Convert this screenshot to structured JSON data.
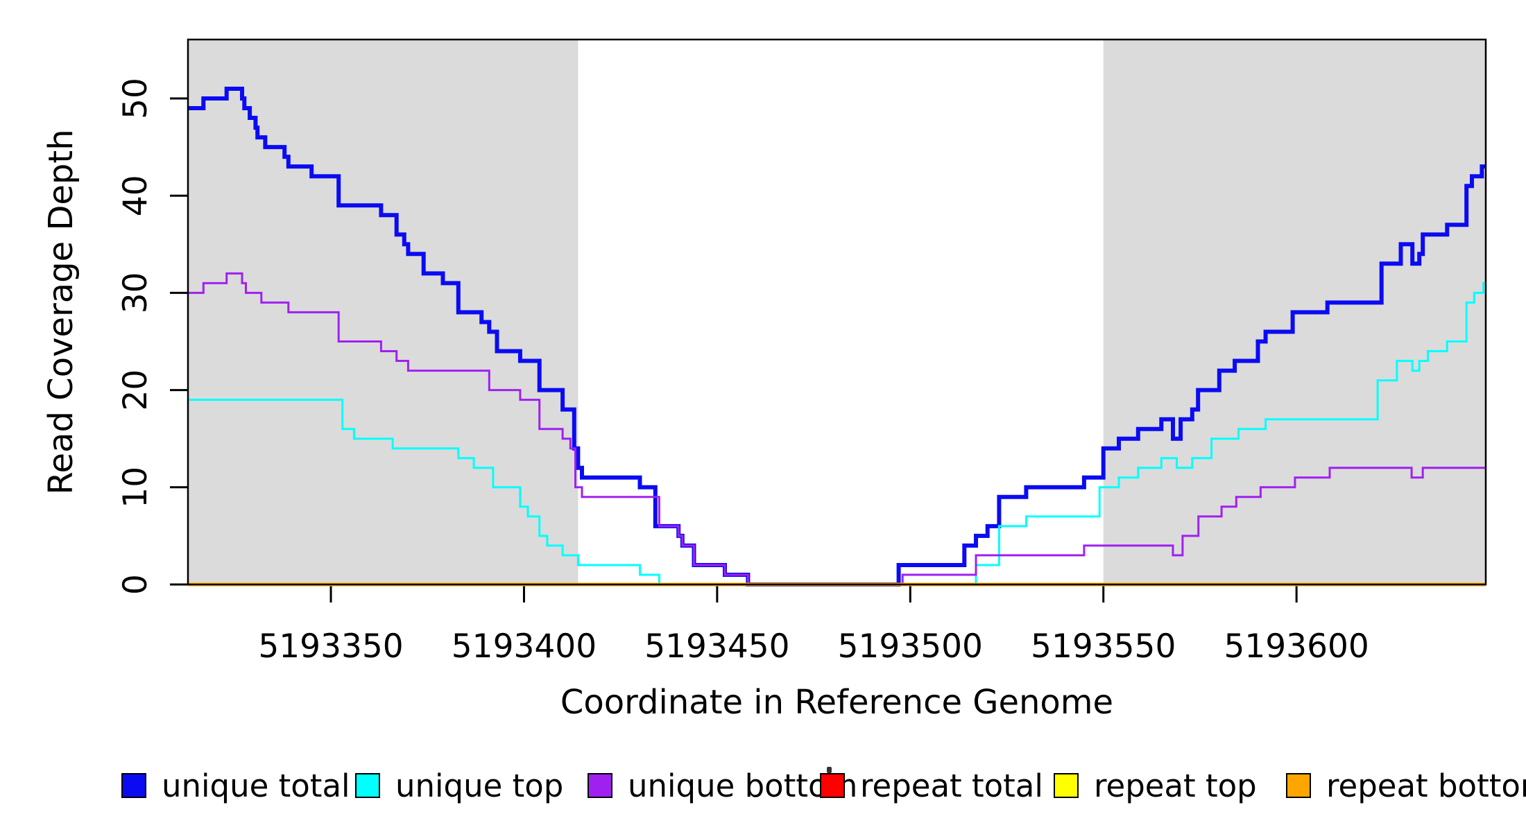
{
  "figure": {
    "background": "#ffffff",
    "axis_color": "#000000"
  },
  "chart_data": {
    "type": "line",
    "subtype": "step",
    "title": "",
    "xlabel": "Coordinate in Reference Genome",
    "ylabel": "Read Coverage Depth",
    "xlim": [
      5193313,
      5193649
    ],
    "ylim": [
      0,
      56
    ],
    "x_ticks": [
      5193350,
      5193400,
      5193450,
      5193500,
      5193550,
      5193600
    ],
    "y_ticks": [
      0,
      10,
      20,
      30,
      40,
      50
    ],
    "grid": false,
    "legend_position": "bottom",
    "shaded_regions": [
      {
        "name": "left-gray-band",
        "from": 5193313,
        "to": 5193414,
        "color": "#DBDBDB"
      },
      {
        "name": "right-gray-band",
        "from": 5193550,
        "to": 5193649,
        "color": "#DBDBDB"
      }
    ],
    "series": [
      {
        "name": "unique total",
        "color": "#0B0BF2",
        "width": 6,
        "points": [
          [
            5193314,
            49
          ],
          [
            5193317,
            50
          ],
          [
            5193323,
            51
          ],
          [
            5193327,
            50
          ],
          [
            5193327.6,
            49
          ],
          [
            5193329,
            48
          ],
          [
            5193330.5,
            47
          ],
          [
            5193331,
            46
          ],
          [
            5193333,
            45
          ],
          [
            5193338,
            44
          ],
          [
            5193339,
            43
          ],
          [
            5193345,
            42
          ],
          [
            5193352,
            39
          ],
          [
            5193363,
            38
          ],
          [
            5193367,
            36
          ],
          [
            5193369,
            35
          ],
          [
            5193370,
            34
          ],
          [
            5193374,
            32
          ],
          [
            5193379,
            31
          ],
          [
            5193383,
            28
          ],
          [
            5193389,
            27
          ],
          [
            5193391,
            26
          ],
          [
            5193393,
            24
          ],
          [
            5193399,
            23
          ],
          [
            5193404,
            20
          ],
          [
            5193410,
            18
          ],
          [
            5193413,
            14
          ],
          [
            5193414,
            12
          ],
          [
            5193415,
            11
          ],
          [
            5193430,
            10
          ],
          [
            5193434,
            6
          ],
          [
            5193440,
            5
          ],
          [
            5193441,
            4
          ],
          [
            5193444,
            2
          ],
          [
            5193452,
            1
          ],
          [
            5193458,
            0
          ],
          [
            5193497,
            2
          ],
          [
            5193514,
            4
          ],
          [
            5193517,
            5
          ],
          [
            5193520,
            6
          ],
          [
            5193523,
            9
          ],
          [
            5193530,
            10
          ],
          [
            5193545,
            11
          ],
          [
            5193550,
            14
          ],
          [
            5193554,
            15
          ],
          [
            5193559,
            16
          ],
          [
            5193565,
            17
          ],
          [
            5193568,
            15
          ],
          [
            5193570,
            17
          ],
          [
            5193573,
            18
          ],
          [
            5193574.5,
            20
          ],
          [
            5193580,
            22
          ],
          [
            5193584,
            23
          ],
          [
            5193590,
            25
          ],
          [
            5193592,
            26
          ],
          [
            5193599,
            28
          ],
          [
            5193608,
            29
          ],
          [
            5193622,
            33
          ],
          [
            5193627,
            35
          ],
          [
            5193630,
            33
          ],
          [
            5193631.8,
            34
          ],
          [
            5193632.7,
            36
          ],
          [
            5193639,
            37
          ],
          [
            5193644,
            41
          ],
          [
            5193645.4,
            42
          ],
          [
            5193648,
            43
          ]
        ]
      },
      {
        "name": "unique top",
        "color": "#00FFFF",
        "width": 3,
        "points": [
          [
            5193314,
            19
          ],
          [
            5193353,
            16
          ],
          [
            5193356,
            15
          ],
          [
            5193366,
            14
          ],
          [
            5193383,
            13
          ],
          [
            5193387,
            12
          ],
          [
            5193392,
            10
          ],
          [
            5193399,
            8
          ],
          [
            5193401,
            7
          ],
          [
            5193404,
            5
          ],
          [
            5193406,
            4
          ],
          [
            5193410,
            3
          ],
          [
            5193414,
            2
          ],
          [
            5193430,
            1
          ],
          [
            5193435,
            0
          ],
          [
            5193517,
            2
          ],
          [
            5193523,
            6
          ],
          [
            5193530,
            7
          ],
          [
            5193549,
            10
          ],
          [
            5193554,
            11
          ],
          [
            5193559,
            12
          ],
          [
            5193565,
            13
          ],
          [
            5193569,
            12
          ],
          [
            5193573,
            13
          ],
          [
            5193578,
            15
          ],
          [
            5193585,
            16
          ],
          [
            5193592,
            17
          ],
          [
            5193621,
            21
          ],
          [
            5193626,
            23
          ],
          [
            5193630,
            22
          ],
          [
            5193631.8,
            23
          ],
          [
            5193634,
            24
          ],
          [
            5193639,
            25
          ],
          [
            5193644,
            29
          ],
          [
            5193646,
            30
          ],
          [
            5193648.4,
            31
          ]
        ]
      },
      {
        "name": "unique bottom",
        "color": "#A020F0",
        "width": 3,
        "points": [
          [
            5193314,
            30
          ],
          [
            5193317,
            31
          ],
          [
            5193323,
            32
          ],
          [
            5193327,
            31
          ],
          [
            5193328,
            30
          ],
          [
            5193332,
            29
          ],
          [
            5193339,
            28
          ],
          [
            5193352,
            25
          ],
          [
            5193363,
            24
          ],
          [
            5193367,
            23
          ],
          [
            5193370,
            22
          ],
          [
            5193391,
            20
          ],
          [
            5193399,
            19
          ],
          [
            5193404,
            16
          ],
          [
            5193410,
            15
          ],
          [
            5193412,
            14
          ],
          [
            5193413.3,
            10
          ],
          [
            5193415,
            9
          ],
          [
            5193435,
            6
          ],
          [
            5193440,
            5
          ],
          [
            5193441,
            4
          ],
          [
            5193444,
            2
          ],
          [
            5193452,
            1
          ],
          [
            5193458,
            0
          ],
          [
            5193498,
            1
          ],
          [
            5193517,
            3
          ],
          [
            5193545,
            4
          ],
          [
            5193568,
            3
          ],
          [
            5193570.5,
            5
          ],
          [
            5193574.6,
            7
          ],
          [
            5193580.6,
            8
          ],
          [
            5193584.4,
            9
          ],
          [
            5193590.7,
            10
          ],
          [
            5193599.6,
            11
          ],
          [
            5193608.6,
            12
          ],
          [
            5193629.8,
            11
          ],
          [
            5193632.7,
            12
          ]
        ]
      },
      {
        "name": "repeat total",
        "color": "#FF0000",
        "width": 3,
        "points": [
          [
            5193314,
            0
          ]
        ]
      },
      {
        "name": "repeat top",
        "color": "#FFFF00",
        "width": 3,
        "points": [
          [
            5193314,
            0
          ]
        ]
      },
      {
        "name": "repeat bottom",
        "color": "#FFA500",
        "width": 5,
        "points": [
          [
            5193314,
            0
          ]
        ]
      }
    ]
  },
  "legend": {
    "items": [
      {
        "label": "unique total",
        "color": "#0B0BF2"
      },
      {
        "label": "unique top",
        "color": "#00FFFF"
      },
      {
        "label": "unique bottom",
        "color": "#A020F0"
      },
      {
        "label": "repeat total",
        "color": "#FF0000"
      },
      {
        "label": "repeat top",
        "color": "#FFFF00"
      },
      {
        "label": "repeat bottom",
        "color": "#FFA500"
      }
    ]
  }
}
